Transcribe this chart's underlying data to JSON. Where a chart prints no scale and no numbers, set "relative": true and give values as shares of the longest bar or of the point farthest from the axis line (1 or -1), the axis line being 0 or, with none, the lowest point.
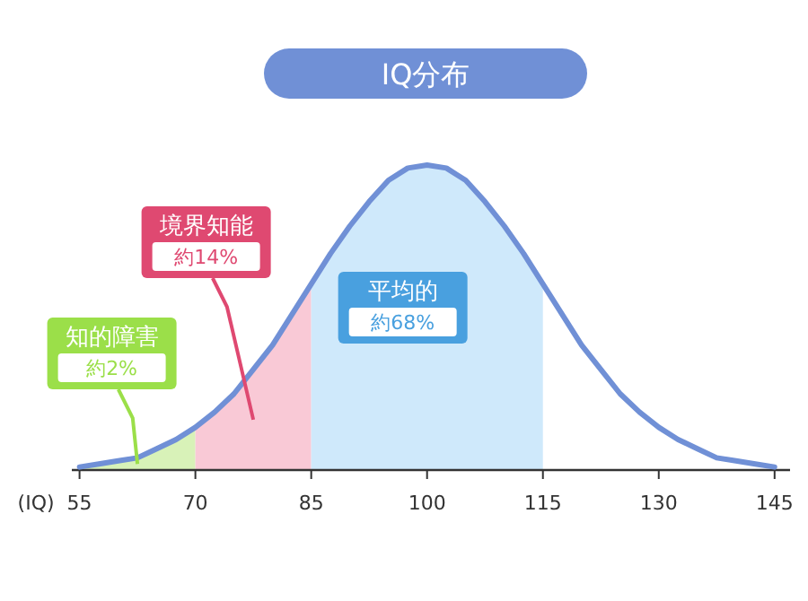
{
  "chart_data": {
    "type": "line",
    "title": "IQ分布",
    "xlabel": "(IQ)",
    "relative": true,
    "xlim": [
      54,
      147
    ],
    "xticks": [
      55,
      70,
      85,
      100,
      115,
      130,
      145
    ],
    "series": [
      {
        "color": "#7090d6",
        "x": [
          55,
          57.5,
          60,
          62.5,
          65,
          67.5,
          70,
          72.5,
          75,
          77.5,
          80,
          82.5,
          85,
          87.5,
          90,
          92.5,
          95,
          97.5,
          100,
          102.5,
          105,
          107.5,
          110,
          112.5,
          115,
          117.5,
          120,
          122.5,
          125,
          127.5,
          130,
          132.5,
          135,
          137.5,
          140,
          142.5,
          145
        ],
        "values": [
          0.01,
          0.02,
          0.03,
          0.04,
          0.07,
          0.1,
          0.14,
          0.19,
          0.25,
          0.33,
          0.41,
          0.51,
          0.61,
          0.71,
          0.8,
          0.88,
          0.95,
          0.99,
          1,
          0.99,
          0.95,
          0.88,
          0.8,
          0.71,
          0.61,
          0.51,
          0.41,
          0.33,
          0.25,
          0.19,
          0.14,
          0.1,
          0.07,
          0.04,
          0.03,
          0.02,
          0.01
        ]
      },
      {
        "type": "area",
        "color": "#d8f2b8",
        "x": [
          55,
          57.5,
          60,
          62.5,
          65,
          67.5,
          70
        ],
        "values": [
          0.01,
          0.02,
          0.03,
          0.04,
          0.07,
          0.1,
          0.14
        ]
      },
      {
        "type": "area",
        "color": "#f9c9d6",
        "x": [
          70,
          72.5,
          75,
          77.5,
          80,
          82.5,
          85
        ],
        "values": [
          0.14,
          0.19,
          0.25,
          0.33,
          0.41,
          0.51,
          0.61
        ]
      },
      {
        "type": "area",
        "color": "#cfe9fb",
        "x": [
          85,
          87.5,
          90,
          92.5,
          95,
          97.5,
          100,
          102.5,
          105,
          107.5,
          110,
          112.5,
          115
        ],
        "values": [
          0.61,
          0.71,
          0.8,
          0.88,
          0.95,
          0.99,
          1,
          0.99,
          0.95,
          0.88,
          0.8,
          0.71,
          0.61
        ]
      }
    ],
    "annotations": [
      "知的障害",
      "約2%",
      "境界知能",
      "約14%",
      "平均的",
      "約68%"
    ]
  }
}
